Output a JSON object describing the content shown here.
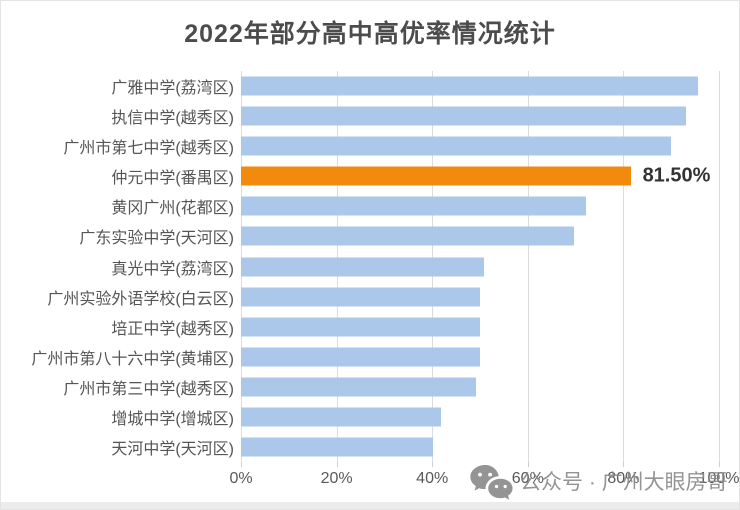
{
  "title": "2022年部分高中高优率情况统计",
  "colors": {
    "bar_default": "#abc8ea",
    "bar_highlight": "#f28b0d",
    "title_text": "#4c4c4c",
    "label_text": "#555555",
    "tick_text": "#595959",
    "gridline": "#dcdcdc",
    "watermark": "#8b8b8b"
  },
  "chart_data": {
    "type": "bar",
    "orientation": "horizontal",
    "title": "2022年部分高中高优率情况统计",
    "categories": [
      "广雅中学(荔湾区)",
      "执信中学(越秀区)",
      "广州市第七中学(越秀区)",
      "仲元中学(番禺区)",
      "黄冈广州(花都区)",
      "广东实验中学(天河区)",
      "真光中学(荔湾区)",
      "广州实验外语学校(白云区)",
      "培正中学(越秀区)",
      "广州市第八十六中学(黄埔区)",
      "广州市第三中学(越秀区)",
      "增城中学(增城区)",
      "天河中学(天河区)"
    ],
    "values": [
      95.7,
      93.0,
      89.9,
      81.5,
      72.2,
      69.6,
      50.8,
      49.9,
      50.0,
      50.0,
      49.2,
      41.8,
      40.2
    ],
    "bar_color": "#abc8ea",
    "highlight": {
      "index": 3,
      "label": "81.50%",
      "color": "#f28b0d"
    },
    "x_ticks": [
      "0%",
      "20%",
      "40%",
      "60%",
      "80%",
      "100%"
    ],
    "xlim": [
      0,
      100
    ],
    "grid": true,
    "legend": false,
    "data_labels": [
      "",
      "",
      "",
      "81.50%",
      "",
      "",
      "",
      "",
      "",
      "",
      "",
      "",
      ""
    ]
  },
  "watermark": {
    "icon": "wechat-icon",
    "text": "公众号 · 广州大眼房哥"
  }
}
